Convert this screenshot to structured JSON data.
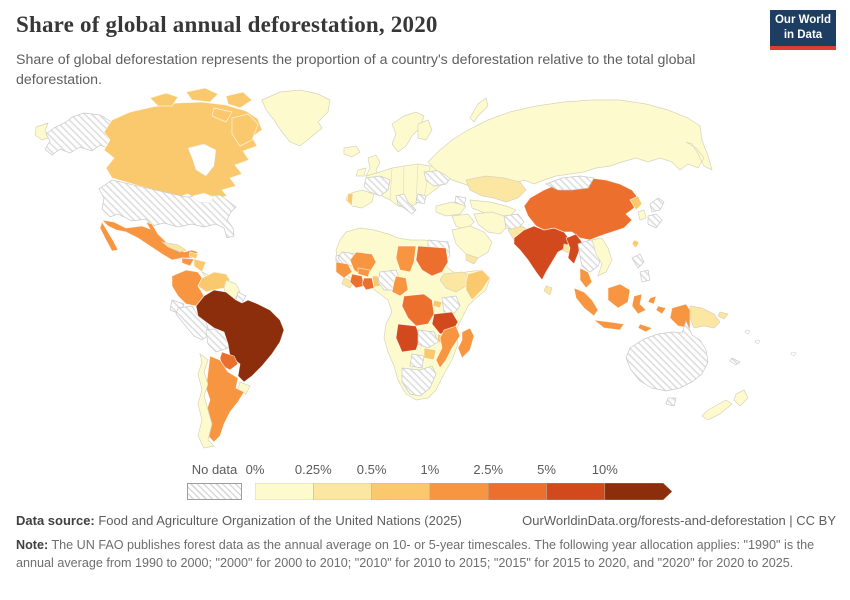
{
  "header": {
    "title": "Share of global annual deforestation, 2020",
    "subtitle": "Share of global deforestation represents the proportion of a country's deforestation relative to the total global deforestation."
  },
  "logo": {
    "line1": "Our World",
    "line2": "in Data",
    "bg": "#1d3d63",
    "accent": "#dc3f32"
  },
  "legend": {
    "no_data_label": "No data",
    "tick_labels": [
      "0%",
      "0.25%",
      "0.5%",
      "1%",
      "2.5%",
      "5%",
      "10%"
    ],
    "bin_order": [
      "b1",
      "b2",
      "b3",
      "b4",
      "b5",
      "b6",
      "b7"
    ],
    "bin_colors": {
      "b1": "#fdfbce",
      "b2": "#fce7a2",
      "b3": "#fbc96d",
      "b4": "#f89540",
      "b5": "#ec6f2d",
      "b6": "#d2491e",
      "b7": "#8c2d0b"
    }
  },
  "footer": {
    "source_label": "Data source:",
    "source_text": " Food and Agriculture Organization of the United Nations (2025)",
    "rights": "OurWorldinData.org/forests-and-deforestation | CC BY",
    "note_label": "Note:",
    "note_text": " The UN FAO publishes forest data as the annual average on 10- or 5-year timescales. The following year allocation applies: \"1990\" is the annual average from 1990 to 2000; \"2000\" for 2000 to 2010; \"2010\" for 2010 to 2015; \"2015\" for 2015 to 2020, and \"2020\" for 2020 to 2025."
  },
  "map": {
    "regions": {
      "russia_east_tip": "b1",
      "alaska": "nodata",
      "canada": "b3",
      "canada_islands": "b3",
      "greenland": "b1",
      "usa": "nodata",
      "mexico": "b4",
      "guatemala": "b4",
      "honduras": "b3",
      "panama": "b1",
      "cuba": "b2",
      "hispaniola": "b3",
      "colombia": "b4",
      "venezuela": "b3",
      "guyanas": "b1",
      "french_guiana": "nodata",
      "ecuador": "nodata",
      "peru": "nodata",
      "bolivia": "nodata",
      "brazil": "b7",
      "paraguay": "b5",
      "uruguay": "b1",
      "argentina": "b4",
      "chile": "b1",
      "africa_base": "b1",
      "w_sahara": "nodata",
      "mauritania": "nodata",
      "egypt": "nodata",
      "mali": "b4",
      "chad": "b4",
      "sudan": "b5",
      "ethiopia": "b2",
      "somalia": "b3",
      "senegal_guinea": "b4",
      "sierra_leone": "b2",
      "cote_divoire": "b5",
      "ghana": "b5",
      "burkina": "b4",
      "togo_benin": "b3",
      "nigeria": "nodata",
      "cameroon": "b4",
      "drc": "b5",
      "uganda": "b3",
      "kenya": "nodata",
      "tanzania": "b6",
      "angola": "b6",
      "zambia": "nodata",
      "malawi": "b3",
      "mozambique": "b4",
      "zimbabwe": "b3",
      "botswana": "nodata",
      "south_africa": "nodata",
      "madagascar": "b4",
      "iceland": "b1",
      "uk": "b1",
      "ireland": "b1",
      "scandinavia": "b1",
      "finland": "b1",
      "europe_base": "b1",
      "france": "nodata",
      "iberia": "b1",
      "portugal": "b3",
      "italy": "nodata",
      "balkans_patch": "nodata",
      "ukraine": "nodata",
      "russia": "b1",
      "novaya_zemlya": "b1",
      "kazakhstan": "b2",
      "central_asia": "b1",
      "caucasus": "nodata",
      "turkey": "b1",
      "iraq": "b1",
      "saudi": "b1",
      "yemen": "b2",
      "iran": "b1",
      "afghanistan": "nodata",
      "pakistan": "b2",
      "india": "b6",
      "sri_lanka": "b2",
      "bangladesh": "b2",
      "china": "b5",
      "mongolia": "nodata",
      "north_korea": "b3",
      "south_korea": "b1",
      "japan": "nodata",
      "taiwan": "b3",
      "myanmar": "b6",
      "thailand_laos": "nodata",
      "vietnam": "b1",
      "malay_peninsula": "b4",
      "sumatra": "b4",
      "borneo": "b4",
      "java": "b4",
      "sulawesi": "b4",
      "philippines": "nodata",
      "moluccas": "b4",
      "timor": "b4",
      "west_papua": "b4",
      "png": "b2",
      "new_britain": "b2",
      "new_caledonia": "nodata",
      "australia": "nodata",
      "tasmania": "nodata",
      "new_zealand": "b1"
    }
  },
  "chart_data": {
    "type": "heatmap",
    "subtype": "choropleth-world-map",
    "title": "Share of global annual deforestation, 2020",
    "unit": "% of global deforestation",
    "legend_bins": [
      "0-0.25%",
      "0.25-0.5%",
      "0.5-1%",
      "1-2.5%",
      "2.5-5%",
      "5-10%",
      ">10%",
      "No data"
    ],
    "legend_position": "bottom",
    "countries": {
      "Brazil": ">10%",
      "India": "5-10%",
      "Myanmar": "5-10%",
      "Angola": "5-10%",
      "Tanzania": "5-10%",
      "China": "2.5-5%",
      "DR Congo": "2.5-5%",
      "Sudan": "2.5-5%",
      "Paraguay": "2.5-5%",
      "Cote d'Ivoire": "2.5-5%",
      "Ghana": "2.5-5%",
      "Indonesia": "1-2.5%",
      "Mexico": "1-2.5%",
      "Colombia": "1-2.5%",
      "Argentina": "1-2.5%",
      "Mozambique": "1-2.5%",
      "Madagascar": "1-2.5%",
      "Mali": "1-2.5%",
      "Chad": "1-2.5%",
      "Cameroon": "1-2.5%",
      "Malaysia": "1-2.5%",
      "Guinea": "1-2.5%",
      "Guatemala": "1-2.5%",
      "Canada": "0.5-1%",
      "Venezuela": "0.5-1%",
      "Somalia": "0.5-1%",
      "Zimbabwe": "0.5-1%",
      "North Korea": "0.5-1%",
      "Portugal": "0.5-1%",
      "Nicaragua": "0.5-1%",
      "Kazakhstan": "0.25-0.5%",
      "Ethiopia": "0.25-0.5%",
      "Pakistan": "0.25-0.5%",
      "Papua New Guinea": "0.25-0.5%",
      "Cuba": "0.25-0.5%",
      "Sri Lanka": "0.25-0.5%",
      "Russia": "0-0.25%",
      "Greenland": "0-0.25%",
      "Chile": "0-0.25%",
      "Uruguay": "0-0.25%",
      "Vietnam": "0-0.25%",
      "New Zealand": "0-0.25%",
      "Norway": "0-0.25%",
      "Sweden": "0-0.25%",
      "Spain": "0-0.25%",
      "Germany": "0-0.25%",
      "Turkey": "0-0.25%",
      "Iran": "0-0.25%",
      "Saudi Arabia": "0-0.25%",
      "Iceland": "0-0.25%",
      "United Kingdom": "0-0.25%",
      "United States": "No data",
      "Australia": "No data",
      "Peru": "No data",
      "Bolivia": "No data",
      "Ecuador": "No data",
      "France": "No data",
      "Italy": "No data",
      "Ukraine": "No data",
      "Mongolia": "No data",
      "Japan": "No data",
      "Thailand": "No data",
      "Laos": "No data",
      "Cambodia": "No data",
      "Kenya": "No data",
      "Zambia": "No data",
      "Botswana": "No data",
      "South Africa": "No data",
      "Egypt": "No data",
      "Mauritania": "No data",
      "Nigeria": "No data",
      "Afghanistan": "No data",
      "Philippines": "No data"
    }
  }
}
